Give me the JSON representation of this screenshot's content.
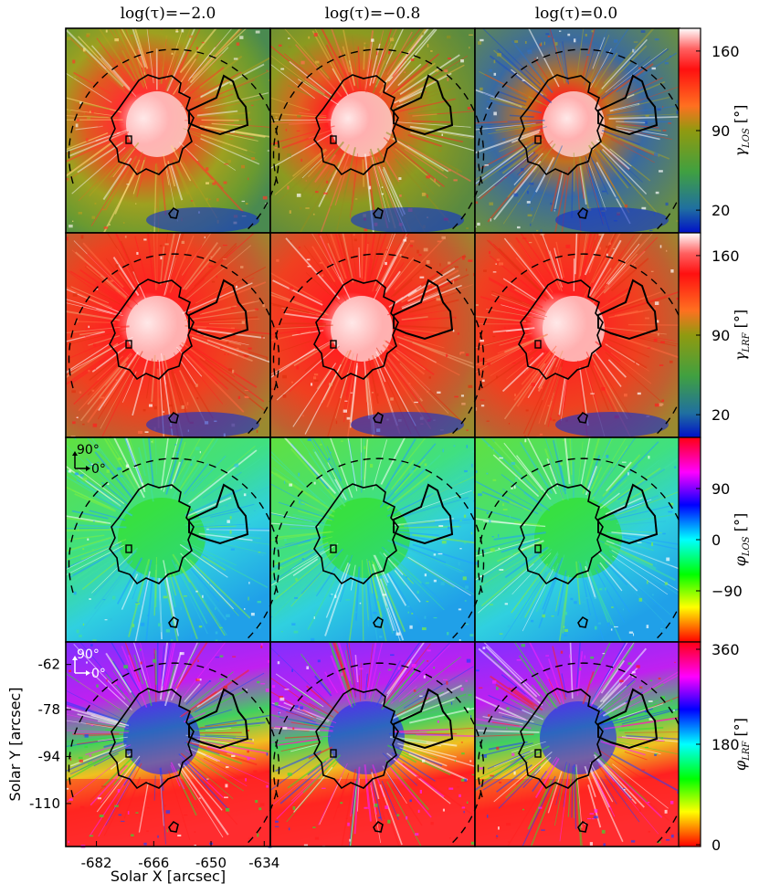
{
  "chart_data": {
    "type": "heatmap",
    "description_free": true,
    "columns": [
      {
        "title": "log(τ)=−2.0"
      },
      {
        "title": "log(τ)=−0.8"
      },
      {
        "title": "log(τ)=0.0"
      }
    ],
    "rows": [
      {
        "quantity": "gamma_LOS",
        "label": "γLOS [°]",
        "label_main": "γ",
        "label_sub": "LOS",
        "label_unit": "[°]",
        "cbar_ticks": [
          "160",
          "90",
          "20"
        ],
        "cbar_values": [
          160,
          90,
          20
        ],
        "cbar_range": [
          0,
          180
        ],
        "cmap": "bgr"
      },
      {
        "quantity": "gamma_LRF",
        "label": "γLRF [°]",
        "label_main": "γ",
        "label_sub": "LRF",
        "label_unit": "[°]",
        "cbar_ticks": [
          "160",
          "90",
          "20"
        ],
        "cbar_values": [
          160,
          90,
          20
        ],
        "cbar_range": [
          0,
          180
        ],
        "cmap": "bgr"
      },
      {
        "quantity": "phi_LOS",
        "label": "φLOS [°]",
        "label_main": "φ",
        "label_sub": "LOS",
        "label_unit": "[°]",
        "cbar_ticks": [
          "90",
          "0",
          "−90"
        ],
        "cbar_values": [
          90,
          0,
          -90
        ],
        "cbar_range": [
          -180,
          180
        ],
        "cmap": "hsv",
        "inset": {
          "up": "90°",
          "right": "0°"
        }
      },
      {
        "quantity": "phi_LRF",
        "label": "φLRF [°]",
        "label_main": "φ",
        "label_sub": "LRF",
        "label_unit": "[°]",
        "cbar_ticks": [
          "360",
          "180",
          "0"
        ],
        "cbar_values": [
          360,
          180,
          0
        ],
        "cbar_range": [
          0,
          360
        ],
        "cmap": "hsv",
        "inset": {
          "up": "90°",
          "right": "0°"
        }
      }
    ],
    "xlabel": "Solar X [arcsec]",
    "ylabel": "Solar Y [arcsec]",
    "xticks": [
      "-682",
      "-666",
      "-650",
      "-634"
    ],
    "yticks": [
      "-62",
      "-78",
      "-94",
      "-110"
    ],
    "colors": {
      "gamma_high": "#ffffff",
      "gamma_mid_high": "#ff2020",
      "gamma_mid": "#6e8c10",
      "gamma_low": "#0a2ad6",
      "hsv_red": "#ff0000",
      "hsv_green": "#20e020",
      "hsv_cyan": "#20e0e0",
      "hsv_blue": "#2040ff",
      "hsv_magenta": "#ff20ff"
    }
  }
}
